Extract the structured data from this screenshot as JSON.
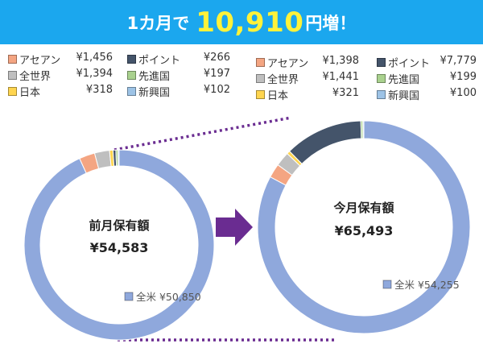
{
  "banner": {
    "prefix": "1カ月で",
    "amount": "10,910",
    "suffix": "円増！"
  },
  "colors": {
    "banner_bg": "#1ba7ee",
    "amount_text": "#fff23a",
    "arrow": "#6a2c91",
    "connector": "#6a2c91"
  },
  "chart_data": [
    {
      "type": "pie",
      "style": "donut",
      "center_title": "前月保有額",
      "center_value": "¥54,583",
      "slices": [
        {
          "name": "全米",
          "value": 50850,
          "label": "¥50,850",
          "color": "#8fa8dc"
        },
        {
          "name": "アセアン",
          "value": 1456,
          "label": "¥1,456",
          "color": "#f4a582"
        },
        {
          "name": "全世界",
          "value": 1394,
          "label": "¥1,394",
          "color": "#bfbfbf"
        },
        {
          "name": "日本",
          "value": 318,
          "label": "¥318",
          "color": "#ffd54f"
        },
        {
          "name": "ポイント",
          "value": 266,
          "label": "¥266",
          "color": "#44546a"
        },
        {
          "name": "先進国",
          "value": 197,
          "label": "¥197",
          "color": "#a9d18e"
        },
        {
          "name": "新興国",
          "value": 102,
          "label": "¥102",
          "color": "#9dc3e6"
        }
      ],
      "inner_label": "全米 ¥50,850"
    },
    {
      "type": "pie",
      "style": "donut",
      "center_title": "今月保有額",
      "center_value": "¥65,493",
      "slices": [
        {
          "name": "全米",
          "value": 54255,
          "label": "¥54,255",
          "color": "#8fa8dc"
        },
        {
          "name": "アセアン",
          "value": 1398,
          "label": "¥1,398",
          "color": "#f4a582"
        },
        {
          "name": "全世界",
          "value": 1441,
          "label": "¥1,441",
          "color": "#bfbfbf"
        },
        {
          "name": "日本",
          "value": 321,
          "label": "¥321",
          "color": "#ffd54f"
        },
        {
          "name": "ポイント",
          "value": 7779,
          "label": "¥7,779",
          "color": "#44546a"
        },
        {
          "name": "先進国",
          "value": 199,
          "label": "¥199",
          "color": "#a9d18e"
        },
        {
          "name": "新興国",
          "value": 100,
          "label": "¥100",
          "color": "#9dc3e6"
        }
      ],
      "inner_label": "全米 ¥54,255"
    }
  ],
  "legends": [
    {
      "rows": [
        [
          {
            "name": "アセアン",
            "value": "¥1,456",
            "color": "#f4a582"
          },
          {
            "name": "ポイント",
            "value": "¥266",
            "color": "#44546a"
          }
        ],
        [
          {
            "name": "全世界",
            "value": "¥1,394",
            "color": "#bfbfbf"
          },
          {
            "name": "先進国",
            "value": "¥197",
            "color": "#a9d18e"
          }
        ],
        [
          {
            "name": "日本",
            "value": "¥318",
            "color": "#ffd54f"
          },
          {
            "name": "新興国",
            "value": "¥102",
            "color": "#9dc3e6"
          }
        ]
      ]
    },
    {
      "rows": [
        [
          {
            "name": "アセアン",
            "value": "¥1,398",
            "color": "#f4a582"
          },
          {
            "name": "ポイント",
            "value": "¥7,779",
            "color": "#44546a"
          }
        ],
        [
          {
            "name": "全世界",
            "value": "¥1,441",
            "color": "#bfbfbf"
          },
          {
            "name": "先進国",
            "value": "¥199",
            "color": "#a9d18e"
          }
        ],
        [
          {
            "name": "日本",
            "value": "¥321",
            "color": "#ffd54f"
          },
          {
            "name": "新興国",
            "value": "¥100",
            "color": "#9dc3e6"
          }
        ]
      ]
    }
  ]
}
